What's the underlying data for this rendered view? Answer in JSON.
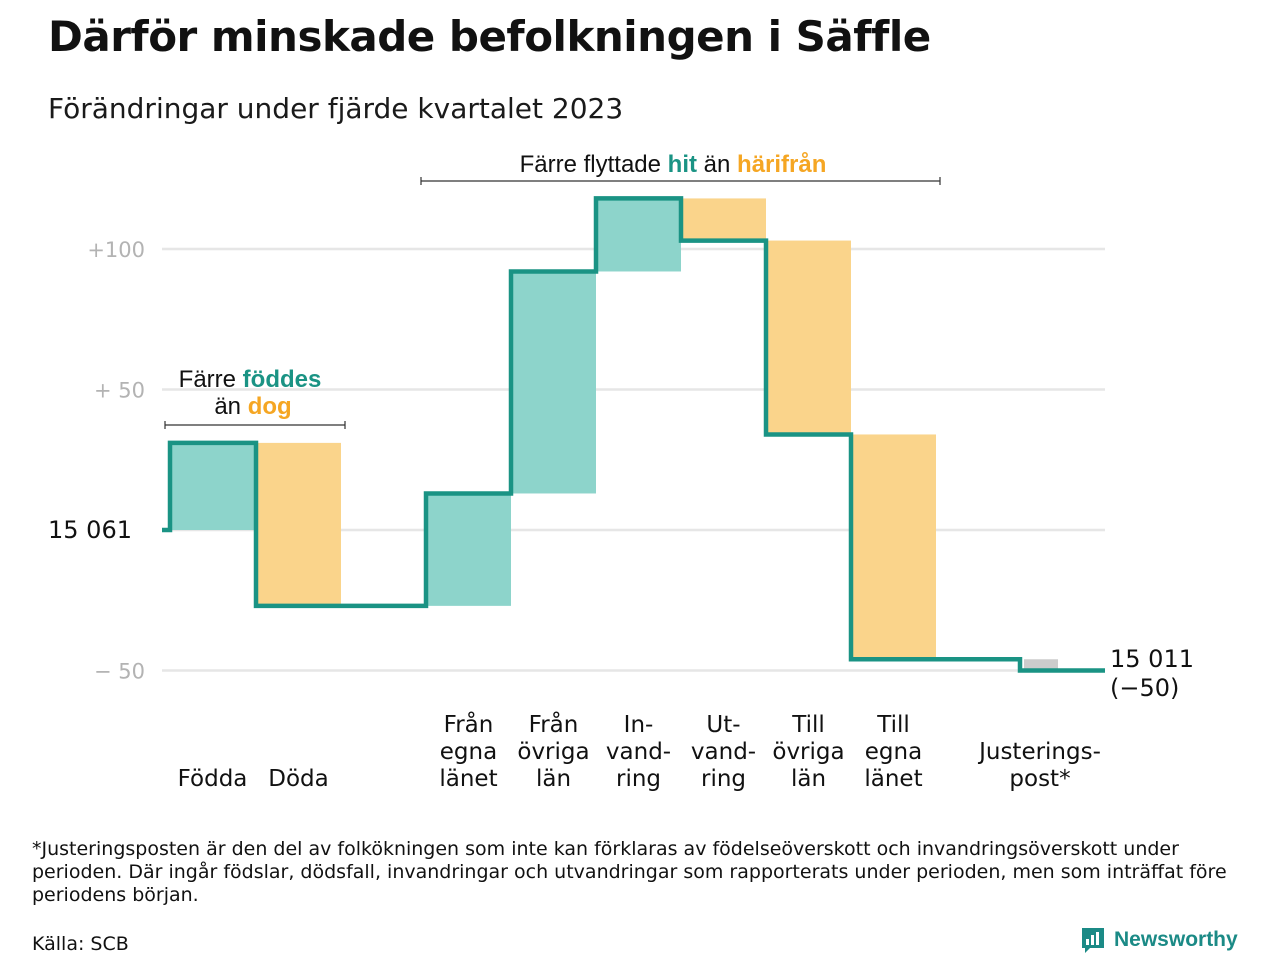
{
  "title": "Därför minskade befolkningen i Säffle",
  "subtitle": "Förändringar under fjärde kvartalet 2023",
  "footnote": "*Justeringsposten är den del av folkökningen som inte kan förklaras av födelseöverskott och invandringsöverskott under perioden. Där ingår födslar, dödsfall, invandringar och utvandringar som rapporterats under perioden, men som inträffat före periodens början.",
  "source": "Källa: SCB",
  "brand": "Newsworthy",
  "colors": {
    "increase": "#8dd4cb",
    "decrease": "#fad48b",
    "line": "#1a9384",
    "adjustment": "#cccccc",
    "teal_text": "#1a9384",
    "orange_text": "#f5a623",
    "grid": "#e6e6e6",
    "tick": "#b3b3b3"
  },
  "chart_data": {
    "type": "waterfall",
    "start_value": 15061,
    "start_label": "15  061",
    "end_label_value": "15 011",
    "end_label_change": "(−50)",
    "y_ticks": [
      {
        "value": 100,
        "label": "+100"
      },
      {
        "value": 50,
        "label": "+  50"
      },
      {
        "value": -50,
        "label": "−  50"
      }
    ],
    "ylim": [
      -60,
      118
    ],
    "steps": [
      {
        "label": [
          "Födda"
        ],
        "change": 31,
        "kind": "increase"
      },
      {
        "label": [
          "Döda"
        ],
        "change": -58,
        "kind": "decrease"
      },
      {
        "label": [
          "Från",
          "egna",
          "länet"
        ],
        "change": 40,
        "kind": "increase"
      },
      {
        "label": [
          "Från",
          "övriga",
          "län"
        ],
        "change": 79,
        "kind": "increase"
      },
      {
        "label": [
          "In-",
          "vand-",
          "ring"
        ],
        "change": 26,
        "kind": "increase"
      },
      {
        "label": [
          "Ut-",
          "vand-",
          "ring"
        ],
        "change": -15,
        "kind": "decrease"
      },
      {
        "label": [
          "Till",
          "övriga",
          "län"
        ],
        "change": -69,
        "kind": "decrease"
      },
      {
        "label": [
          "Till",
          "egna",
          "länet"
        ],
        "change": -80,
        "kind": "decrease"
      },
      {
        "label": [
          "Justerings-",
          "post*"
        ],
        "change": -4,
        "kind": "adjustment"
      }
    ],
    "annotations": [
      {
        "parts": [
          "Färre ",
          "föddes"
        ],
        "parts2": [
          "än ",
          "dog"
        ]
      },
      {
        "parts": [
          "Färre flyttade ",
          "hit",
          " än ",
          "härifrån"
        ]
      }
    ]
  }
}
